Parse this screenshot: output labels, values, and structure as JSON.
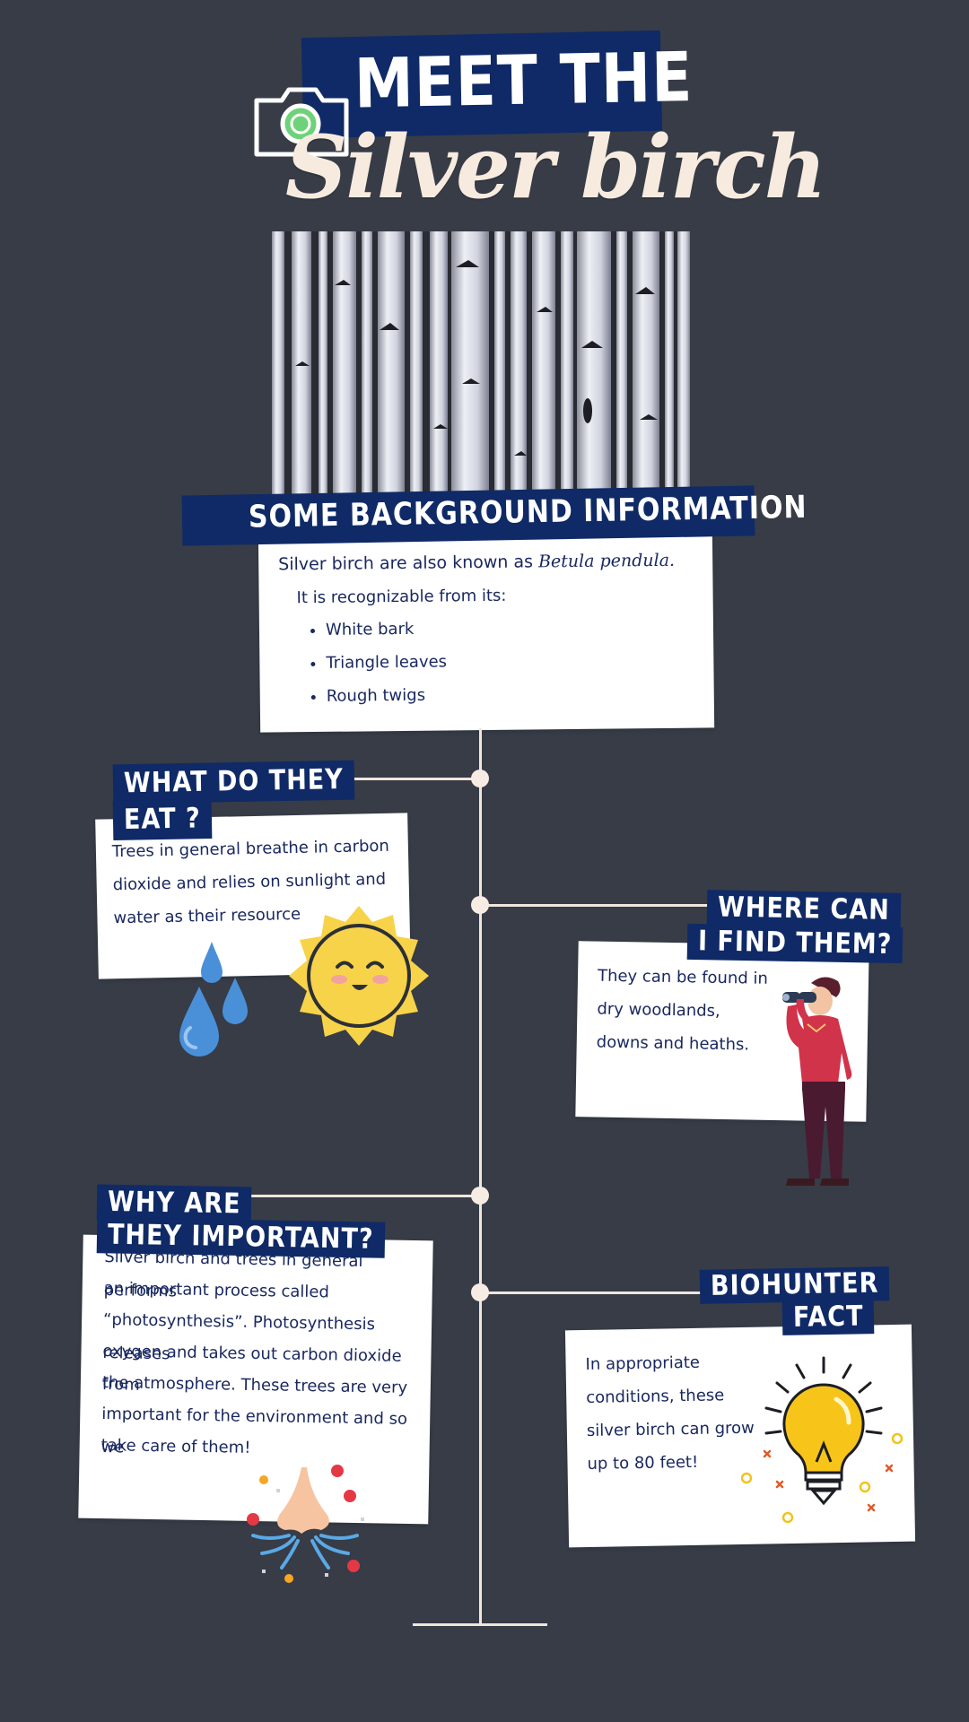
{
  "title": {
    "top": "MEET THE",
    "script": "Silver birch"
  },
  "background": {
    "heading": "SOME BACKGROUND INFORMATION",
    "line1_prefix": "Silver birch are also known as ",
    "line1_species": "Betula pendula.",
    "line2": "It is recognizable from its:",
    "features": [
      "White bark",
      "Triangle leaves",
      "Rough twigs"
    ]
  },
  "eat": {
    "heading_line1": "WHAT DO THEY",
    "heading_line2": "EAT ?",
    "text_line1": "Trees in general breathe in carbon",
    "text_line2": "dioxide and relies on sunlight and",
    "text_line3": "water as their resource"
  },
  "where": {
    "heading_line1": "WHERE CAN",
    "heading_line2": "I FIND THEM?",
    "text_line1": "They can be found in",
    "text_line2": "dry woodlands,",
    "text_line3": "downs and heaths."
  },
  "why": {
    "heading_line1": "WHY ARE",
    "heading_line2": "THEY IMPORTANT?",
    "text_lines": [
      "Silver birch and trees in general performs",
      "an important process called",
      "“photosynthesis”. Photosynthesis releases",
      "oxygen and takes out carbon dioxide from",
      "the atmosphere. These trees are very",
      "important for the environment and so we",
      "take care of them!"
    ]
  },
  "fact": {
    "heading_line1": "BIOHUNTER",
    "heading_line2": "FACT",
    "text_lines": [
      "In appropriate",
      "conditions, these",
      "silver birch can grow",
      "up to 80 feet!"
    ]
  },
  "colors": {
    "background": "#373c47",
    "navy": "#0f2a66",
    "cream": "#f7ebdf",
    "card": "#ffffff",
    "text": "#1a2860",
    "sun": "#f7d34a",
    "water": "#4a90d9",
    "bulb": "#f7c51a"
  },
  "icons": [
    "camera-icon",
    "sun-icon",
    "water-drops-icon",
    "person-binoculars-icon",
    "nose-breathing-icon",
    "lightbulb-icon"
  ]
}
